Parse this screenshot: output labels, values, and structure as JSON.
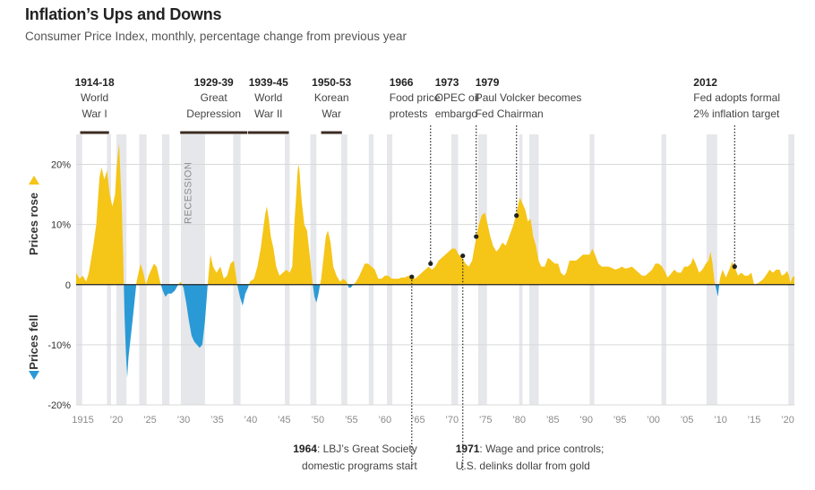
{
  "header": {
    "title": "Inflation’s Ups and Downs",
    "subtitle": "Consumer Price Index, monthly, percentage change from previous year"
  },
  "chart_data": {
    "type": "area",
    "title": "Inflation’s Ups and Downs",
    "subtitle": "Consumer Price Index, monthly, percentage change from previous year",
    "ylabel_top": "Prices rose",
    "ylabel_bottom": "Prices fell",
    "ylim": [
      -20,
      25
    ],
    "xlim": [
      1914,
      2021
    ],
    "yticks": [
      20,
      10,
      0,
      -10,
      -20
    ],
    "ytick_labels": [
      "20%",
      "10%",
      "0",
      "-10%",
      "-20%"
    ],
    "xticks": [
      1915,
      1920,
      1925,
      1930,
      1935,
      1940,
      1945,
      1950,
      1955,
      1960,
      1965,
      1970,
      1975,
      1980,
      1985,
      1990,
      1995,
      2000,
      2005,
      2010,
      2015,
      2020
    ],
    "xtick_labels": [
      "1915",
      "’20",
      "’25",
      "’30",
      "’35",
      "’40",
      "’45",
      "’50",
      "’55",
      "’60",
      "’65",
      "’70",
      "’75",
      "’80",
      "’85",
      "’90",
      "’95",
      "’00",
      "’05",
      "’10",
      "’15",
      "’20"
    ],
    "grid": true,
    "positive_color": "#f5c518",
    "negative_color": "#2a9ad6",
    "recession_color": "#e6e7ea",
    "recession_label": "RECESSION",
    "recessions": [
      [
        1914.0,
        1914.9
      ],
      [
        1918.6,
        1919.2
      ],
      [
        1920.0,
        1921.5
      ],
      [
        1923.4,
        1924.5
      ],
      [
        1926.8,
        1927.9
      ],
      [
        1929.6,
        1933.2
      ],
      [
        1937.4,
        1938.5
      ],
      [
        1945.1,
        1945.8
      ],
      [
        1948.9,
        1949.8
      ],
      [
        1953.5,
        1954.4
      ],
      [
        1957.6,
        1958.3
      ],
      [
        1960.3,
        1961.1
      ],
      [
        1969.9,
        1970.9
      ],
      [
        1973.9,
        1975.2
      ],
      [
        1980.0,
        1980.5
      ],
      [
        1981.5,
        1982.9
      ],
      [
        1990.5,
        1991.2
      ],
      [
        2001.2,
        2001.9
      ],
      [
        2007.9,
        2009.5
      ],
      [
        2020.1,
        2021.0
      ]
    ],
    "series": [
      {
        "values": [
          [
            1914.0,
            2.0
          ],
          [
            1914.5,
            1.0
          ],
          [
            1915.0,
            1.5
          ],
          [
            1915.5,
            0.5
          ],
          [
            1915.9,
            2.0
          ],
          [
            1916.5,
            6.0
          ],
          [
            1917.0,
            10.0
          ],
          [
            1917.3,
            15.0
          ],
          [
            1917.5,
            18.0
          ],
          [
            1917.8,
            19.5
          ],
          [
            1918.2,
            17.5
          ],
          [
            1918.6,
            19.0
          ],
          [
            1919.0,
            15.0
          ],
          [
            1919.4,
            13.0
          ],
          [
            1919.8,
            15.0
          ],
          [
            1920.0,
            19.0
          ],
          [
            1920.2,
            21.5
          ],
          [
            1920.4,
            23.5
          ],
          [
            1920.5,
            21.0
          ],
          [
            1920.8,
            13.0
          ],
          [
            1921.0,
            5.0
          ],
          [
            1921.2,
            -5.0
          ],
          [
            1921.4,
            -11.0
          ],
          [
            1921.6,
            -15.5
          ],
          [
            1921.8,
            -12.0
          ],
          [
            1922.2,
            -8.0
          ],
          [
            1922.5,
            -5.0
          ],
          [
            1923.0,
            0.5
          ],
          [
            1923.3,
            2.0
          ],
          [
            1923.6,
            3.5
          ],
          [
            1924.0,
            2.0
          ],
          [
            1924.4,
            0.0
          ],
          [
            1924.8,
            1.5
          ],
          [
            1925.2,
            2.5
          ],
          [
            1925.6,
            3.5
          ],
          [
            1926.0,
            3.0
          ],
          [
            1926.5,
            0.5
          ],
          [
            1926.9,
            -1.0
          ],
          [
            1927.3,
            -2.0
          ],
          [
            1927.7,
            -1.5
          ],
          [
            1928.2,
            -1.5
          ],
          [
            1928.7,
            -1.0
          ],
          [
            1929.2,
            0.0
          ],
          [
            1929.6,
            0.5
          ],
          [
            1930.0,
            -0.5
          ],
          [
            1930.4,
            -3.0
          ],
          [
            1930.8,
            -6.0
          ],
          [
            1931.2,
            -8.5
          ],
          [
            1931.6,
            -9.5
          ],
          [
            1932.0,
            -10.0
          ],
          [
            1932.4,
            -10.5
          ],
          [
            1932.8,
            -10.0
          ],
          [
            1933.2,
            -6.0
          ],
          [
            1933.6,
            0.0
          ],
          [
            1934.0,
            5.0
          ],
          [
            1934.4,
            3.0
          ],
          [
            1934.9,
            2.0
          ],
          [
            1935.5,
            3.0
          ],
          [
            1936.0,
            1.0
          ],
          [
            1936.5,
            1.5
          ],
          [
            1937.0,
            3.5
          ],
          [
            1937.5,
            4.0
          ],
          [
            1938.0,
            0.0
          ],
          [
            1938.4,
            -2.0
          ],
          [
            1938.8,
            -3.5
          ],
          [
            1939.2,
            -1.5
          ],
          [
            1939.6,
            -0.5
          ],
          [
            1939.9,
            0.5
          ],
          [
            1940.5,
            1.0
          ],
          [
            1941.0,
            3.0
          ],
          [
            1941.5,
            6.0
          ],
          [
            1941.9,
            9.5
          ],
          [
            1942.2,
            12.0
          ],
          [
            1942.4,
            13.0
          ],
          [
            1942.7,
            11.0
          ],
          [
            1943.0,
            8.0
          ],
          [
            1943.4,
            6.0
          ],
          [
            1943.8,
            3.0
          ],
          [
            1944.3,
            1.5
          ],
          [
            1944.8,
            2.0
          ],
          [
            1945.3,
            2.5
          ],
          [
            1945.8,
            2.0
          ],
          [
            1946.2,
            3.0
          ],
          [
            1946.5,
            10.0
          ],
          [
            1946.8,
            15.0
          ],
          [
            1947.0,
            19.0
          ],
          [
            1947.2,
            20.0
          ],
          [
            1947.6,
            14.0
          ],
          [
            1948.0,
            10.0
          ],
          [
            1948.4,
            9.0
          ],
          [
            1948.8,
            5.0
          ],
          [
            1949.2,
            0.5
          ],
          [
            1949.5,
            -2.0
          ],
          [
            1949.8,
            -3.0
          ],
          [
            1950.1,
            -1.5
          ],
          [
            1950.5,
            1.0
          ],
          [
            1950.9,
            5.0
          ],
          [
            1951.2,
            8.0
          ],
          [
            1951.5,
            9.0
          ],
          [
            1951.9,
            7.0
          ],
          [
            1952.3,
            3.0
          ],
          [
            1952.8,
            1.5
          ],
          [
            1953.3,
            0.5
          ],
          [
            1953.8,
            1.0
          ],
          [
            1954.3,
            0.5
          ],
          [
            1954.6,
            -0.5
          ],
          [
            1954.9,
            -0.5
          ],
          [
            1955.3,
            0.0
          ],
          [
            1955.7,
            0.5
          ],
          [
            1956.2,
            1.5
          ],
          [
            1956.6,
            2.5
          ],
          [
            1957.0,
            3.5
          ],
          [
            1957.5,
            3.5
          ],
          [
            1958.0,
            3.0
          ],
          [
            1958.5,
            2.5
          ],
          [
            1959.0,
            1.0
          ],
          [
            1959.5,
            1.0
          ],
          [
            1960.0,
            1.5
          ],
          [
            1960.5,
            1.5
          ],
          [
            1961.0,
            1.0
          ],
          [
            1961.5,
            1.0
          ],
          [
            1962.0,
            1.0
          ],
          [
            1962.5,
            1.2
          ],
          [
            1963.0,
            1.2
          ],
          [
            1963.5,
            1.5
          ],
          [
            1964.0,
            1.5
          ],
          [
            1964.5,
            1.0
          ],
          [
            1965.0,
            1.5
          ],
          [
            1965.5,
            2.0
          ],
          [
            1966.0,
            2.5
          ],
          [
            1966.5,
            3.0
          ],
          [
            1967.0,
            2.5
          ],
          [
            1967.5,
            3.0
          ],
          [
            1968.0,
            4.0
          ],
          [
            1968.5,
            4.5
          ],
          [
            1969.0,
            5.0
          ],
          [
            1969.5,
            5.5
          ],
          [
            1970.0,
            6.0
          ],
          [
            1970.5,
            6.0
          ],
          [
            1971.0,
            5.0
          ],
          [
            1971.5,
            4.5
          ],
          [
            1972.0,
            3.5
          ],
          [
            1972.5,
            3.0
          ],
          [
            1973.0,
            4.0
          ],
          [
            1973.3,
            6.0
          ],
          [
            1973.7,
            8.5
          ],
          [
            1974.0,
            10.0
          ],
          [
            1974.4,
            11.5
          ],
          [
            1974.9,
            12.0
          ],
          [
            1975.3,
            10.0
          ],
          [
            1975.7,
            8.0
          ],
          [
            1976.1,
            6.5
          ],
          [
            1976.6,
            5.5
          ],
          [
            1977.0,
            6.0
          ],
          [
            1977.5,
            7.0
          ],
          [
            1978.0,
            6.5
          ],
          [
            1978.5,
            8.0
          ],
          [
            1979.0,
            9.5
          ],
          [
            1979.4,
            11.0
          ],
          [
            1979.8,
            13.0
          ],
          [
            1980.1,
            14.5
          ],
          [
            1980.5,
            13.5
          ],
          [
            1980.9,
            12.5
          ],
          [
            1981.3,
            10.5
          ],
          [
            1981.7,
            11.0
          ],
          [
            1982.1,
            8.0
          ],
          [
            1982.5,
            6.5
          ],
          [
            1982.9,
            4.0
          ],
          [
            1983.3,
            3.0
          ],
          [
            1983.8,
            3.0
          ],
          [
            1984.3,
            4.5
          ],
          [
            1984.8,
            4.0
          ],
          [
            1985.3,
            3.5
          ],
          [
            1985.8,
            3.5
          ],
          [
            1986.2,
            2.0
          ],
          [
            1986.7,
            1.5
          ],
          [
            1987.0,
            2.0
          ],
          [
            1987.5,
            4.0
          ],
          [
            1988.0,
            4.0
          ],
          [
            1988.5,
            4.0
          ],
          [
            1989.0,
            4.5
          ],
          [
            1989.5,
            5.0
          ],
          [
            1990.0,
            5.0
          ],
          [
            1990.5,
            5.0
          ],
          [
            1990.9,
            6.0
          ],
          [
            1991.3,
            5.0
          ],
          [
            1991.8,
            3.5
          ],
          [
            1992.3,
            3.0
          ],
          [
            1992.8,
            3.0
          ],
          [
            1993.3,
            3.0
          ],
          [
            1993.8,
            2.8
          ],
          [
            1994.3,
            2.5
          ],
          [
            1994.8,
            2.7
          ],
          [
            1995.3,
            3.0
          ],
          [
            1995.8,
            2.7
          ],
          [
            1996.3,
            2.8
          ],
          [
            1996.8,
            3.0
          ],
          [
            1997.3,
            2.5
          ],
          [
            1997.8,
            2.0
          ],
          [
            1998.3,
            1.5
          ],
          [
            1998.8,
            1.5
          ],
          [
            1999.3,
            2.0
          ],
          [
            1999.8,
            2.5
          ],
          [
            2000.3,
            3.5
          ],
          [
            2000.8,
            3.5
          ],
          [
            2001.3,
            3.0
          ],
          [
            2001.8,
            2.0
          ],
          [
            2002.1,
            1.2
          ],
          [
            2002.6,
            1.8
          ],
          [
            2003.1,
            2.5
          ],
          [
            2003.6,
            2.0
          ],
          [
            2004.1,
            2.0
          ],
          [
            2004.6,
            3.0
          ],
          [
            2005.1,
            3.0
          ],
          [
            2005.6,
            3.5
          ],
          [
            2005.9,
            4.5
          ],
          [
            2006.3,
            3.5
          ],
          [
            2006.8,
            2.0
          ],
          [
            2007.3,
            2.5
          ],
          [
            2007.8,
            3.5
          ],
          [
            2008.2,
            4.0
          ],
          [
            2008.5,
            5.5
          ],
          [
            2008.8,
            3.5
          ],
          [
            2009.1,
            0.5
          ],
          [
            2009.4,
            -1.0
          ],
          [
            2009.6,
            -2.0
          ],
          [
            2009.9,
            1.0
          ],
          [
            2010.3,
            2.5
          ],
          [
            2010.8,
            1.2
          ],
          [
            2011.3,
            2.5
          ],
          [
            2011.7,
            3.8
          ],
          [
            2012.1,
            3.0
          ],
          [
            2012.6,
            1.5
          ],
          [
            2013.1,
            2.0
          ],
          [
            2013.6,
            1.5
          ],
          [
            2014.1,
            1.5
          ],
          [
            2014.6,
            2.0
          ],
          [
            2015.0,
            0.0
          ],
          [
            2015.5,
            0.2
          ],
          [
            2015.9,
            0.5
          ],
          [
            2016.4,
            1.0
          ],
          [
            2016.9,
            1.8
          ],
          [
            2017.3,
            2.5
          ],
          [
            2017.8,
            2.0
          ],
          [
            2018.3,
            2.5
          ],
          [
            2018.8,
            2.5
          ],
          [
            2019.1,
            1.5
          ],
          [
            2019.6,
            1.8
          ],
          [
            2019.9,
            2.3
          ],
          [
            2020.2,
            1.5
          ],
          [
            2020.4,
            0.3
          ],
          [
            2020.7,
            1.2
          ],
          [
            2021.0,
            1.5
          ]
        ]
      }
    ],
    "top_events": [
      {
        "year": "1914-18",
        "lines": [
          "World",
          "War I"
        ],
        "range": [
          1914.6,
          1918.9
        ]
      },
      {
        "year": "1929-39",
        "lines": [
          "Great",
          "Depression"
        ],
        "range": [
          1929.5,
          1939.5
        ]
      },
      {
        "year": "1939-45",
        "lines": [
          "World",
          "War II"
        ],
        "range": [
          1939.6,
          1945.7
        ]
      },
      {
        "year": "1950-53",
        "lines": [
          "Korean",
          "War"
        ],
        "range": [
          1950.5,
          1953.6
        ]
      },
      {
        "year": "1966",
        "lines": [
          "Food price",
          "protests"
        ],
        "x": 1966.8,
        "y": 3.5
      },
      {
        "year": "1973",
        "lines": [
          "OPEC oil",
          "embargo"
        ],
        "x": 1973.6,
        "y": 8.0
      },
      {
        "year": "1979",
        "lines": [
          "Paul Volcker becomes",
          "Fed Chairman"
        ],
        "x": 1979.6,
        "y": 11.5
      },
      {
        "year": "2012",
        "lines": [
          "Fed adopts formal",
          "2% inflation target"
        ],
        "x": 2012.1,
        "y": 3.0
      }
    ],
    "bottom_events": [
      {
        "year": "1964",
        "text_lines": [
          ": LBJ’s Great Society",
          "domestic programs start"
        ],
        "x": 1964.0,
        "y": 1.3
      },
      {
        "year": "1971",
        "text_lines": [
          ": Wage and price controls;",
          "U.S. delinks dollar from gold"
        ],
        "x": 1971.6,
        "y": 4.8
      }
    ]
  }
}
